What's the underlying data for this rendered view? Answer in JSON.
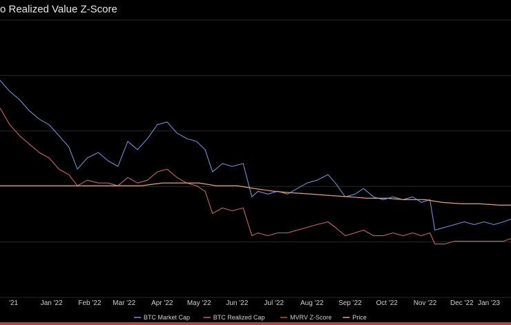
{
  "chart_data": {
    "type": "line",
    "title": "o Realized Value Z-Score",
    "x_tick_labels": [
      "'21",
      "Jan '22",
      "Feb '22",
      "Mar '22",
      "Apr '22",
      "May '22",
      "Jun '22",
      "Jul '22",
      "Aug '22",
      "Sep '22",
      "Oct '22",
      "Nov '22",
      "Dec '22",
      "Jan '23"
    ],
    "x_tick_dates": [
      "2021-12-01",
      "2022-01-01",
      "2022-02-01",
      "2022-03-01",
      "2022-04-01",
      "2022-05-01",
      "2022-06-01",
      "2022-07-01",
      "2022-08-01",
      "2022-09-01",
      "2022-10-01",
      "2022-11-01",
      "2022-12-01",
      "2023-01-01"
    ],
    "x_range": [
      "2021-11-20",
      "2023-01-10"
    ],
    "y_range": [
      0,
      1
    ],
    "grid": true,
    "legend_position": "bottom",
    "series": [
      {
        "name": "BTC Market Cap",
        "color": "#6f8fd8",
        "x": [
          "2021-11-20",
          "2021-11-28",
          "2021-12-06",
          "2021-12-14",
          "2021-12-22",
          "2021-12-30",
          "2022-01-07",
          "2022-01-15",
          "2022-01-22",
          "2022-01-30",
          "2022-02-08",
          "2022-02-16",
          "2022-02-24",
          "2022-03-04",
          "2022-03-12",
          "2022-03-20",
          "2022-03-28",
          "2022-04-05",
          "2022-04-13",
          "2022-04-21",
          "2022-04-29",
          "2022-05-06",
          "2022-05-12",
          "2022-05-20",
          "2022-05-28",
          "2022-06-06",
          "2022-06-13",
          "2022-06-18",
          "2022-06-26",
          "2022-07-04",
          "2022-07-12",
          "2022-07-20",
          "2022-07-28",
          "2022-08-05",
          "2022-08-14",
          "2022-08-20",
          "2022-08-28",
          "2022-09-05",
          "2022-09-12",
          "2022-09-20",
          "2022-09-28",
          "2022-10-06",
          "2022-10-14",
          "2022-10-22",
          "2022-10-29",
          "2022-11-05",
          "2022-11-09",
          "2022-11-17",
          "2022-11-25",
          "2022-12-03",
          "2022-12-11",
          "2022-12-19",
          "2022-12-27",
          "2023-01-04",
          "2023-01-10"
        ],
        "y": [
          0.78,
          0.74,
          0.71,
          0.67,
          0.64,
          0.62,
          0.58,
          0.54,
          0.46,
          0.5,
          0.52,
          0.49,
          0.47,
          0.56,
          0.53,
          0.57,
          0.62,
          0.63,
          0.59,
          0.57,
          0.56,
          0.53,
          0.45,
          0.48,
          0.47,
          0.48,
          0.36,
          0.38,
          0.37,
          0.38,
          0.37,
          0.39,
          0.41,
          0.42,
          0.44,
          0.41,
          0.36,
          0.37,
          0.39,
          0.36,
          0.35,
          0.36,
          0.35,
          0.36,
          0.34,
          0.35,
          0.24,
          0.25,
          0.26,
          0.27,
          0.26,
          0.27,
          0.26,
          0.27,
          0.28
        ]
      },
      {
        "name": "BTC Realized Cap",
        "color": "#c86464",
        "x": [
          "2021-11-20",
          "2021-11-28",
          "2021-12-06",
          "2021-12-14",
          "2021-12-22",
          "2021-12-30",
          "2022-01-07",
          "2022-01-15",
          "2022-01-22",
          "2022-01-30",
          "2022-02-08",
          "2022-02-16",
          "2022-02-24",
          "2022-03-04",
          "2022-03-12",
          "2022-03-20",
          "2022-03-28",
          "2022-04-05",
          "2022-04-13",
          "2022-04-21",
          "2022-04-29",
          "2022-05-06",
          "2022-05-12",
          "2022-05-20",
          "2022-05-28",
          "2022-06-06",
          "2022-06-13",
          "2022-06-18",
          "2022-06-26",
          "2022-07-04",
          "2022-07-12",
          "2022-07-20",
          "2022-07-28",
          "2022-08-05",
          "2022-08-14",
          "2022-08-20",
          "2022-08-28",
          "2022-09-05",
          "2022-09-12",
          "2022-09-20",
          "2022-09-28",
          "2022-10-06",
          "2022-10-14",
          "2022-10-22",
          "2022-10-29",
          "2022-11-05",
          "2022-11-09",
          "2022-11-17",
          "2022-11-25",
          "2022-12-03",
          "2022-12-11",
          "2022-12-19",
          "2022-12-27",
          "2023-01-04",
          "2023-01-10"
        ],
        "y": [
          0.68,
          0.62,
          0.58,
          0.55,
          0.52,
          0.5,
          0.46,
          0.44,
          0.4,
          0.42,
          0.41,
          0.41,
          0.4,
          0.43,
          0.41,
          0.42,
          0.45,
          0.46,
          0.43,
          0.41,
          0.4,
          0.38,
          0.3,
          0.32,
          0.31,
          0.32,
          0.22,
          0.23,
          0.22,
          0.23,
          0.23,
          0.24,
          0.25,
          0.26,
          0.27,
          0.25,
          0.22,
          0.23,
          0.24,
          0.22,
          0.22,
          0.23,
          0.22,
          0.23,
          0.22,
          0.23,
          0.19,
          0.19,
          0.2,
          0.2,
          0.2,
          0.2,
          0.2,
          0.2,
          0.21
        ]
      },
      {
        "name": "MVRV Z-Score",
        "color": "#b85050",
        "x": [
          "2021-11-20",
          "2021-12-04",
          "2021-12-18",
          "2022-01-01",
          "2022-01-15",
          "2022-02-01",
          "2022-02-15",
          "2022-03-01",
          "2022-03-15",
          "2022-04-01",
          "2022-04-15",
          "2022-05-01",
          "2022-05-15",
          "2022-06-01",
          "2022-06-15",
          "2022-07-01",
          "2022-07-15",
          "2022-08-01",
          "2022-08-15",
          "2022-09-01",
          "2022-09-15",
          "2022-10-01",
          "2022-10-15",
          "2022-11-01",
          "2022-11-15",
          "2022-12-01",
          "2022-12-15",
          "2023-01-01",
          "2023-01-10"
        ],
        "y": [
          0.4,
          0.4,
          0.4,
          0.4,
          0.4,
          0.4,
          0.4,
          0.4,
          0.4,
          0.41,
          0.41,
          0.41,
          0.4,
          0.4,
          0.39,
          0.38,
          0.375,
          0.37,
          0.365,
          0.36,
          0.355,
          0.355,
          0.35,
          0.35,
          0.34,
          0.335,
          0.335,
          0.33,
          0.33
        ]
      },
      {
        "name": "Price",
        "color": "#e0a878",
        "x": [
          "2021-11-20",
          "2021-12-04",
          "2021-12-18",
          "2022-01-01",
          "2022-01-15",
          "2022-02-01",
          "2022-02-15",
          "2022-03-01",
          "2022-03-15",
          "2022-04-01",
          "2022-04-15",
          "2022-05-01",
          "2022-05-15",
          "2022-06-01",
          "2022-06-15",
          "2022-07-01",
          "2022-07-15",
          "2022-08-01",
          "2022-08-15",
          "2022-09-01",
          "2022-09-15",
          "2022-10-01",
          "2022-10-15",
          "2022-11-01",
          "2022-11-15",
          "2022-12-01",
          "2022-12-15",
          "2023-01-01",
          "2023-01-10"
        ],
        "y": [
          0.4,
          0.4,
          0.4,
          0.4,
          0.4,
          0.4,
          0.4,
          0.4,
          0.4,
          0.41,
          0.41,
          0.41,
          0.4,
          0.4,
          0.39,
          0.38,
          0.375,
          0.37,
          0.365,
          0.36,
          0.355,
          0.355,
          0.35,
          0.35,
          0.34,
          0.335,
          0.335,
          0.33,
          0.33
        ]
      }
    ],
    "legend": [
      "BTC Market Cap",
      "BTC Realized Cap",
      "MVRV Z-Score",
      "Price"
    ]
  }
}
